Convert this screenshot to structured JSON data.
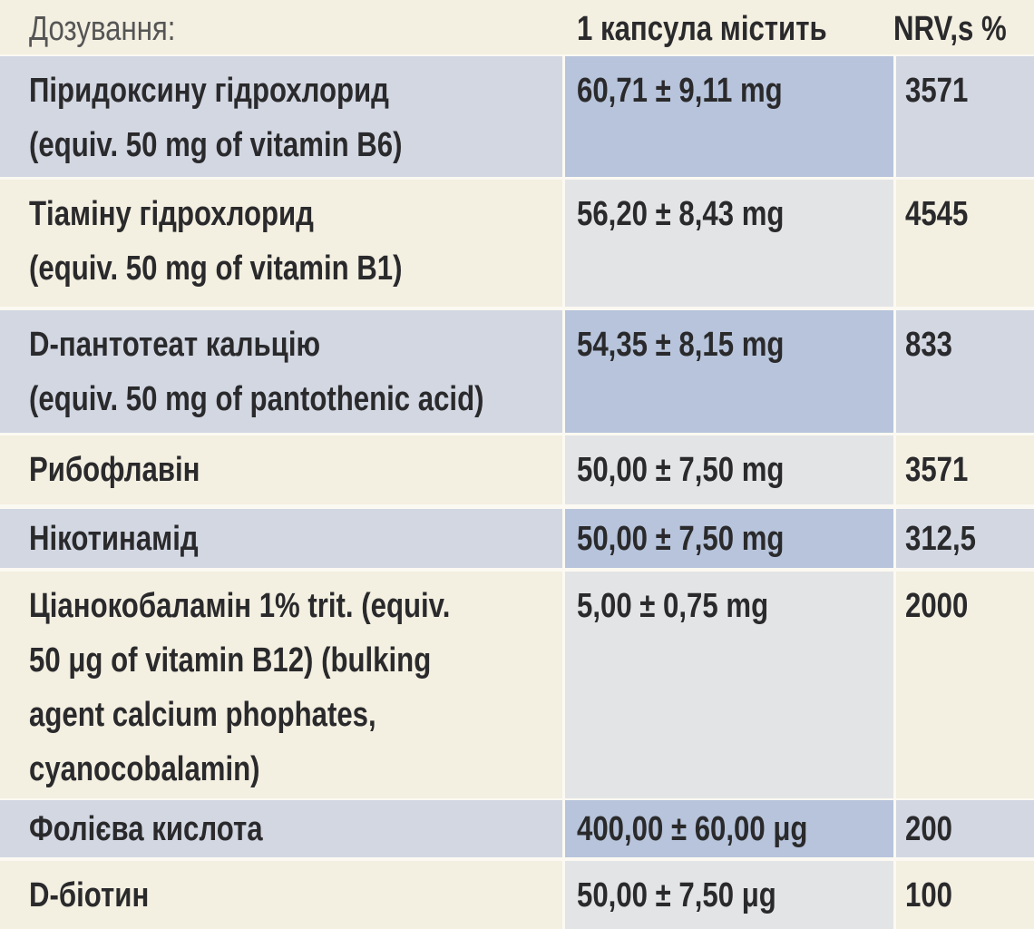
{
  "header": {
    "columns": [
      "Дозування:",
      "1 капсула містить",
      "NRV,s %"
    ]
  },
  "table": {
    "rows": [
      {
        "name": [
          "Піридоксину гідрохлорид",
          "(equiv. 50 mg of vitamin B6)"
        ],
        "amount": "60,71 ± 9,11 mg",
        "nrv": "3571"
      },
      {
        "name": [
          "Тіаміну гідрохлорид",
          "(equiv. 50 mg of vitamin B1)"
        ],
        "amount": "56,20 ± 8,43 mg",
        "nrv": "4545"
      },
      {
        "name": [
          "D-пантотеат кальцію",
          "(equiv. 50 mg of pantothenic acid)"
        ],
        "amount": "54,35 ± 8,15 mg",
        "nrv": "833"
      },
      {
        "name": [
          "Рибофлавін"
        ],
        "amount": "50,00 ± 7,50 mg",
        "nrv": "3571"
      },
      {
        "name": [
          "Нікотинамід"
        ],
        "amount": "50,00 ± 7,50 mg",
        "nrv": "312,5"
      },
      {
        "name": [
          "Ціанокобаламін 1% trit. (equiv.",
          "50 μg of vitamin B12) (bulking",
          "agent calcium phophates,",
          "cyanocobalamin)"
        ],
        "amount": "5,00 ± 0,75 mg",
        "nrv": "2000"
      },
      {
        "name": [
          "Фолієва кислота"
        ],
        "amount": "400,00 ± 60,00 μg",
        "nrv": "200"
      },
      {
        "name": [
          "D-біотин"
        ],
        "amount": "50,00 ± 7,50 μg",
        "nrv": "100"
      }
    ]
  }
}
